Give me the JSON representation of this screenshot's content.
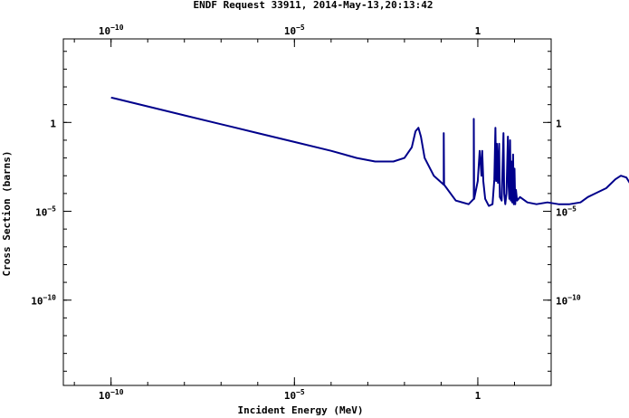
{
  "chart_data": {
    "type": "line",
    "title": "ENDF Request 33911, 2014-May-13,20:13:42",
    "xlabel": "Incident Energy (MeV)",
    "ylabel": "Cross Section (barns)",
    "xscale": "log",
    "yscale": "log",
    "xlim_log10": [
      -11.3,
      2.0
    ],
    "ylim_log10": [
      -14.8,
      4.7
    ],
    "grid": false,
    "line_color": "#00008b",
    "x_ticks": [
      {
        "base": "10",
        "exp": "−10",
        "log10": -10
      },
      {
        "base": "10",
        "exp": "−5",
        "log10": -5
      },
      {
        "base": "1",
        "exp": "",
        "log10": 0
      }
    ],
    "y_ticks": [
      {
        "base": "1",
        "exp": "",
        "log10": 0
      },
      {
        "base": "10",
        "exp": "−5",
        "log10": -5
      },
      {
        "base": "10",
        "exp": "−10",
        "log10": -10
      }
    ],
    "series": [
      {
        "points_log10": [
          [
            -10.0,
            1.4
          ],
          [
            -9.0,
            0.9
          ],
          [
            -8.0,
            0.4
          ],
          [
            -7.0,
            -0.1
          ],
          [
            -6.0,
            -0.6
          ],
          [
            -5.0,
            -1.1
          ],
          [
            -4.0,
            -1.6
          ],
          [
            -3.3,
            -2.0
          ],
          [
            -2.8,
            -2.2
          ],
          [
            -2.3,
            -2.2
          ],
          [
            -2.0,
            -2.0
          ],
          [
            -1.8,
            -1.4
          ],
          [
            -1.7,
            -0.5
          ],
          [
            -1.62,
            -0.3
          ],
          [
            -1.55,
            -0.8
          ],
          [
            -1.45,
            -2.0
          ],
          [
            -1.2,
            -3.0
          ],
          [
            -0.93,
            -3.5
          ],
          [
            -0.93,
            -0.6
          ],
          [
            -0.92,
            -3.5
          ],
          [
            -0.6,
            -4.4
          ],
          [
            -0.25,
            -4.6
          ],
          [
            -0.11,
            -4.3
          ],
          [
            -0.11,
            0.2
          ],
          [
            -0.1,
            -4.3
          ],
          [
            0.0,
            -3.3
          ],
          [
            0.05,
            -1.6
          ],
          [
            0.1,
            -3.0
          ],
          [
            0.12,
            -1.6
          ],
          [
            0.15,
            -3.3
          ],
          [
            0.2,
            -4.3
          ],
          [
            0.3,
            -4.7
          ],
          [
            0.4,
            -4.6
          ],
          [
            0.45,
            -3.2
          ],
          [
            0.48,
            -0.3
          ],
          [
            0.5,
            -3.3
          ],
          [
            0.52,
            -1.2
          ],
          [
            0.55,
            -3.4
          ],
          [
            0.58,
            -1.2
          ],
          [
            0.6,
            -4.2
          ],
          [
            0.65,
            -4.4
          ],
          [
            0.7,
            -0.6
          ],
          [
            0.72,
            -4.0
          ],
          [
            0.75,
            -4.6
          ],
          [
            0.78,
            -4.0
          ],
          [
            0.82,
            -0.8
          ],
          [
            0.84,
            -3.6
          ],
          [
            0.86,
            -4.3
          ],
          [
            0.88,
            -1.0
          ],
          [
            0.9,
            -4.4
          ],
          [
            0.92,
            -2.2
          ],
          [
            0.94,
            -4.5
          ],
          [
            0.96,
            -1.8
          ],
          [
            0.98,
            -4.6
          ],
          [
            1.0,
            -2.6
          ],
          [
            1.02,
            -4.6
          ],
          [
            1.04,
            -3.8
          ],
          [
            1.07,
            -4.4
          ],
          [
            1.15,
            -4.2
          ],
          [
            1.35,
            -4.5
          ],
          [
            1.6,
            -4.6
          ],
          [
            1.9,
            -4.5
          ],
          [
            2.2,
            -4.6
          ],
          [
            2.5,
            -4.6
          ],
          [
            2.8,
            -4.5
          ],
          [
            3.0,
            -4.2
          ],
          [
            3.2,
            -4.0
          ],
          [
            3.5,
            -3.7
          ],
          [
            3.75,
            -3.2
          ],
          [
            3.9,
            -3.0
          ],
          [
            4.05,
            -3.1
          ],
          [
            4.2,
            -3.6
          ],
          [
            4.3,
            -3.8
          ],
          [
            4.4,
            -3.8
          ],
          [
            4.42,
            -10.5
          ],
          [
            4.42,
            -14.8
          ]
        ]
      }
    ]
  }
}
